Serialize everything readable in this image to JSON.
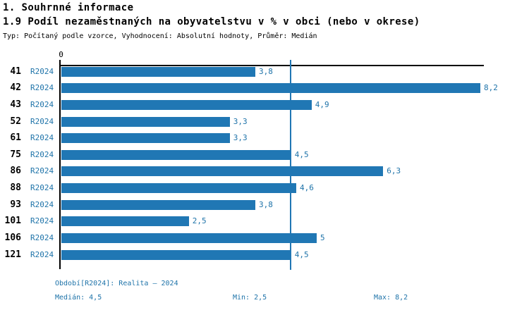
{
  "header": {
    "title": "1. Souhrnné informace",
    "subtitle": "1.9 Podíl nezaměstnaných na obyvatelstvu v % v obci (nebo v okrese)",
    "meta": "Typ: Počítaný podle vzorce, Vyhodnocení: Absolutní hodnoty, Průměr: Medián"
  },
  "chart_data": {
    "type": "bar",
    "orientation": "horizontal",
    "title": "1.9 Podíl nezaměstnaných na obyvatelstvu v % v obci (nebo v okrese)",
    "categories": [
      "41",
      "42",
      "43",
      "52",
      "61",
      "75",
      "86",
      "88",
      "93",
      "101",
      "106",
      "121"
    ],
    "series": [
      {
        "name": "R2024",
        "values": [
          3.8,
          8.2,
          4.9,
          3.3,
          3.3,
          4.5,
          6.3,
          4.6,
          3.8,
          2.5,
          5,
          4.5
        ]
      }
    ],
    "value_labels": [
      "3,8",
      "8,2",
      "4,9",
      "3,3",
      "3,3",
      "4,5",
      "6,3",
      "4,6",
      "3,8",
      "2,5",
      "5",
      "4,5"
    ],
    "series_tick_label": "R2024",
    "x_origin_tick": "0",
    "xlim": [
      0,
      8.28
    ],
    "median_line": 4.5,
    "grid": false,
    "legend_position": "none",
    "bar_color": "#2077B4",
    "text_color": "#1E73A9",
    "stats": {
      "median": 4.5,
      "min": 2.5,
      "max": 8.2
    }
  },
  "footer": {
    "period": "Období[R2024]: Realita – 2024",
    "median": "Medián: 4,5",
    "min": "Min: 2,5",
    "max": "Max: 8,2"
  }
}
